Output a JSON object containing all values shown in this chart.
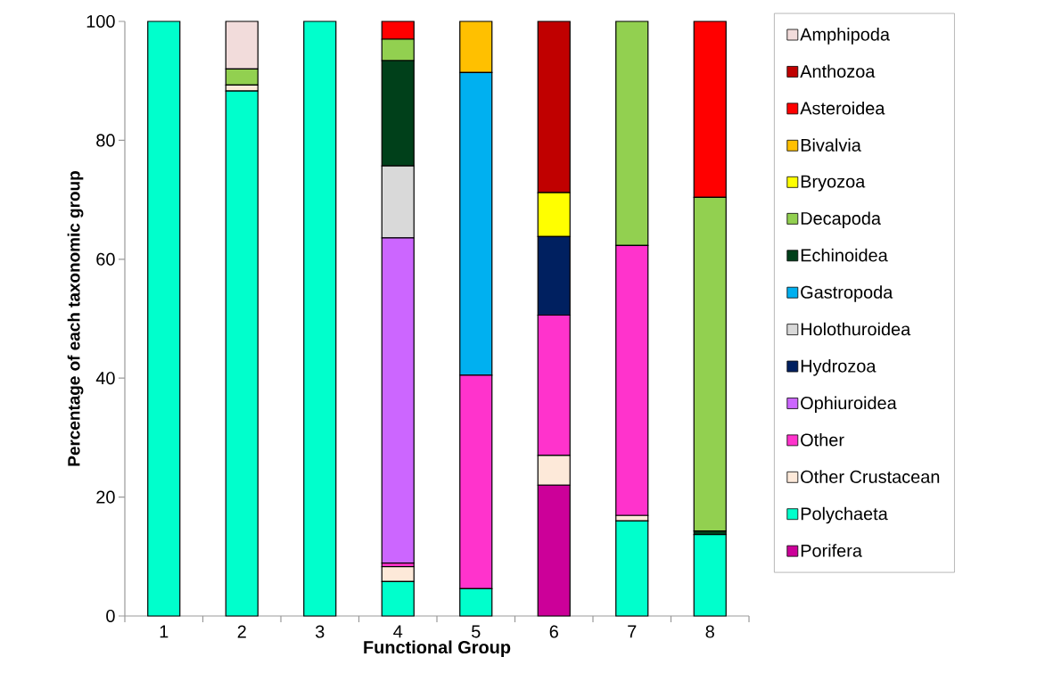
{
  "chart_data": {
    "type": "bar",
    "stacked": true,
    "xlabel": "Functional Group",
    "ylabel": "Percentage of each taxonomic group",
    "categories": [
      "1",
      "2",
      "3",
      "4",
      "5",
      "6",
      "7",
      "8"
    ],
    "ylim": [
      0,
      100
    ],
    "yticks": [
      0,
      20,
      40,
      60,
      80,
      100
    ],
    "grid": false,
    "legend": "right",
    "series": [
      {
        "name": "Porifera",
        "color": "#cc0099",
        "values": [
          0,
          0,
          0,
          0,
          0,
          22.0,
          0,
          0
        ]
      },
      {
        "name": "Polychaeta",
        "color": "#00ffcc",
        "values": [
          100,
          88.3,
          100,
          5.8,
          4.6,
          0,
          16.0,
          13.7
        ]
      },
      {
        "name": "Other Crustacean",
        "color": "#fde9d9",
        "values": [
          0,
          1.0,
          0,
          2.5,
          0,
          5.0,
          0.9,
          0
        ]
      },
      {
        "name": "Other",
        "color": "#ff33cc",
        "values": [
          0,
          0,
          0,
          0.6,
          35.9,
          23.6,
          45.4,
          0
        ]
      },
      {
        "name": "Ophiuroidea",
        "color": "#cc66ff",
        "values": [
          0,
          0,
          0,
          54.7,
          0,
          0,
          0,
          0
        ]
      },
      {
        "name": "Hydrozoa",
        "color": "#002060",
        "values": [
          0,
          0,
          0,
          0,
          0,
          13.2,
          0,
          0
        ]
      },
      {
        "name": "Holothuroidea",
        "color": "#d9d9d9",
        "values": [
          0,
          0,
          0,
          12.1,
          0,
          0,
          0,
          0
        ]
      },
      {
        "name": "Gastropoda",
        "color": "#00b0f0",
        "values": [
          0,
          0,
          0,
          0,
          50.9,
          0,
          0,
          0
        ]
      },
      {
        "name": "Echinoidea",
        "color": "#00401a",
        "values": [
          0,
          0,
          0,
          17.7,
          0,
          0,
          0,
          0.6
        ]
      },
      {
        "name": "Decapoda",
        "color": "#92d050",
        "values": [
          0,
          2.7,
          0,
          3.6,
          0,
          0,
          37.7,
          56.1
        ]
      },
      {
        "name": "Bryozoa",
        "color": "#ffff00",
        "values": [
          0,
          0,
          0,
          0,
          0,
          7.4,
          0,
          0
        ]
      },
      {
        "name": "Bivalvia",
        "color": "#ffc000",
        "values": [
          0,
          0,
          0,
          0,
          8.6,
          0,
          0,
          0
        ]
      },
      {
        "name": "Asteroidea",
        "color": "#ff0000",
        "values": [
          0,
          0,
          0,
          3.0,
          0,
          0,
          0,
          29.6
        ]
      },
      {
        "name": "Anthozoa",
        "color": "#c00000",
        "values": [
          0,
          0,
          0,
          0,
          0,
          28.8,
          0,
          0
        ]
      },
      {
        "name": "Amphipoda",
        "color": "#f2dcdb",
        "values": [
          0,
          8.0,
          0,
          0,
          0,
          0,
          0,
          0
        ]
      }
    ]
  }
}
